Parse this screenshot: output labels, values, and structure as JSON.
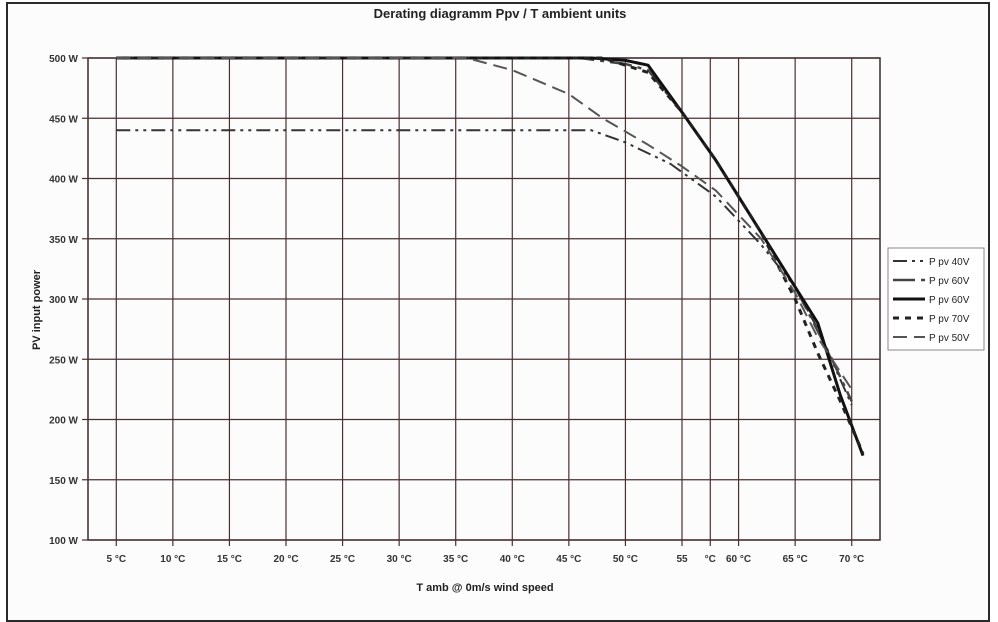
{
  "chart_data": {
    "type": "line",
    "title": "Derating diagramm Ppv / T ambient units",
    "xlabel": "T amb  @  0m/s wind speed",
    "ylabel": "PV input power",
    "x_categories": [
      "5 °C",
      "10 °C",
      "15 °C",
      "20 °C",
      "25 °C",
      "30 °C",
      "35 °C",
      "40 °C",
      "45 °C",
      "50 °C",
      "55",
      "°C",
      "60 °C",
      "65 °C",
      "70 °C"
    ],
    "x_values": [
      5,
      10,
      15,
      20,
      25,
      30,
      35,
      40,
      45,
      50,
      55,
      57.5,
      60,
      65,
      70
    ],
    "xlim": [
      2.5,
      72.5
    ],
    "y_ticks": [
      "100 W",
      "150 W",
      "200 W",
      "250 W",
      "300 W",
      "350 W",
      "400 W",
      "450 W",
      "500 W"
    ],
    "ylim": [
      100,
      500
    ],
    "grid": true,
    "legend_position": "right",
    "series": [
      {
        "name": "P pv 40V",
        "color": "#333333",
        "dash": "dashdot",
        "points": [
          [
            5,
            440
          ],
          [
            47,
            440
          ],
          [
            50,
            430
          ],
          [
            54,
            412
          ],
          [
            58,
            385
          ],
          [
            62,
            345
          ],
          [
            65,
            310
          ],
          [
            67,
            275
          ],
          [
            70,
            212
          ]
        ]
      },
      {
        "name": "P pv 60V",
        "color": "#444444",
        "dash": "longdash",
        "points": [
          [
            5,
            500
          ],
          [
            46,
            500
          ],
          [
            50,
            495
          ],
          [
            52,
            490
          ],
          [
            55,
            455
          ],
          [
            58,
            415
          ],
          [
            62,
            355
          ],
          [
            65,
            310
          ],
          [
            68,
            255
          ],
          [
            70,
            215
          ]
        ]
      },
      {
        "name": "P pv 60V",
        "color": "#111111",
        "dash": "solid",
        "points": [
          [
            5,
            500
          ],
          [
            47,
            500
          ],
          [
            50,
            498
          ],
          [
            52,
            494
          ],
          [
            55,
            455
          ],
          [
            58,
            415
          ],
          [
            62,
            355
          ],
          [
            65,
            310
          ],
          [
            67,
            280
          ],
          [
            69,
            220
          ],
          [
            71,
            170
          ]
        ]
      },
      {
        "name": "P pv 70V",
        "color": "#222222",
        "dash": "dotted",
        "points": [
          [
            5,
            500
          ],
          [
            48,
            500
          ],
          [
            52,
            488
          ],
          [
            55,
            455
          ],
          [
            58,
            415
          ],
          [
            62,
            355
          ],
          [
            65,
            300
          ],
          [
            67,
            255
          ],
          [
            69,
            215
          ],
          [
            71,
            172
          ]
        ]
      },
      {
        "name": "P pv 50V",
        "color": "#555555",
        "dash": "dash",
        "points": [
          [
            5,
            500
          ],
          [
            36,
            500
          ],
          [
            40,
            490
          ],
          [
            45,
            470
          ],
          [
            48,
            450
          ],
          [
            52,
            428
          ],
          [
            55,
            410
          ],
          [
            58,
            390
          ],
          [
            62,
            350
          ],
          [
            65,
            305
          ],
          [
            67,
            268
          ],
          [
            70,
            225
          ]
        ]
      }
    ]
  }
}
